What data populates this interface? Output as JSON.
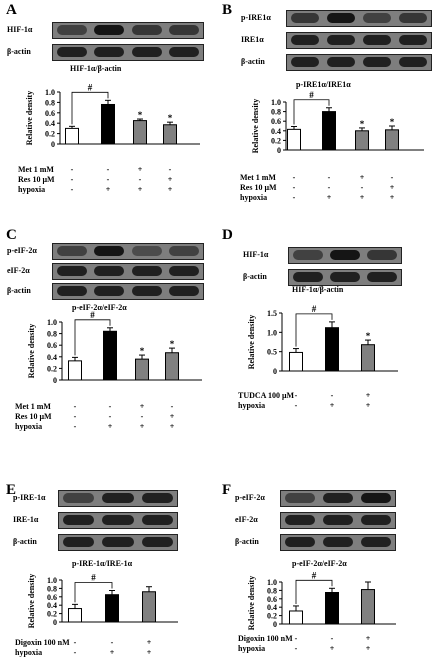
{
  "panels": [
    {
      "label": "A",
      "blots": [
        {
          "name": "HIF-1α",
          "intensities": [
            0.5,
            0.9,
            0.6,
            0.6
          ]
        },
        {
          "name": "β-actin",
          "intensities": [
            0.8,
            0.8,
            0.8,
            0.8
          ]
        }
      ],
      "ratio_title": "HIF-1α/β-actin",
      "conditions": [
        {
          "name": "Met 1 mM",
          "values": [
            "-",
            "-",
            "+",
            "-"
          ]
        },
        {
          "name": "Res 10 μM",
          "values": [
            "-",
            "-",
            "-",
            "+"
          ]
        },
        {
          "name": "hypoxia",
          "values": [
            "-",
            "+",
            "+",
            "+"
          ]
        }
      ],
      "chart_data": {
        "type": "bar",
        "ylabel": "Relative density",
        "ylim": [
          0,
          1.0
        ],
        "yticks": [
          "0",
          "0.2",
          "0.4",
          "0.6",
          "0.8",
          "1.0"
        ],
        "ytick_values": [
          0,
          0.2,
          0.4,
          0.6,
          0.8,
          1.0
        ],
        "values": [
          0.3,
          0.76,
          0.45,
          0.37
        ],
        "errors": [
          0.04,
          0.08,
          0.03,
          0.05
        ],
        "fills": [
          "#ffffff",
          "#000000",
          "#808080",
          "#808080"
        ],
        "annotations": [
          "",
          "",
          "*",
          "*"
        ],
        "bracket": {
          "from": 0,
          "to": 1,
          "label": "#"
        }
      }
    },
    {
      "label": "B",
      "blots": [
        {
          "name": "p-IRE1α",
          "intensities": [
            0.6,
            0.9,
            0.5,
            0.6
          ]
        },
        {
          "name": "IRE1α",
          "intensities": [
            0.8,
            0.8,
            0.8,
            0.8
          ]
        },
        {
          "name": "β-actin",
          "intensities": [
            0.8,
            0.8,
            0.8,
            0.8
          ]
        }
      ],
      "ratio_title": "p-IRE1α/IRE1α",
      "conditions": [
        {
          "name": "Met 1 mM",
          "values": [
            "-",
            "-",
            "+",
            "-"
          ]
        },
        {
          "name": "Res 10 μM",
          "values": [
            "-",
            "-",
            "-",
            "+"
          ]
        },
        {
          "name": "hypoxia",
          "values": [
            "-",
            "+",
            "+",
            "+"
          ]
        }
      ],
      "chart_data": {
        "type": "bar",
        "ylabel": "Relative density",
        "ylim": [
          0,
          1.0
        ],
        "yticks": [
          "0",
          "0.2",
          "0.4",
          "0.6",
          "0.8",
          "1.0"
        ],
        "ytick_values": [
          0,
          0.2,
          0.4,
          0.6,
          0.8,
          1.0
        ],
        "values": [
          0.43,
          0.8,
          0.4,
          0.42
        ],
        "errors": [
          0.06,
          0.08,
          0.06,
          0.08
        ],
        "fills": [
          "#ffffff",
          "#000000",
          "#808080",
          "#808080"
        ],
        "annotations": [
          "",
          "",
          "*",
          "*"
        ],
        "bracket": {
          "from": 0,
          "to": 1,
          "label": "#"
        }
      }
    },
    {
      "label": "C",
      "blots": [
        {
          "name": "p-eIF-2α",
          "intensities": [
            0.5,
            0.9,
            0.4,
            0.5
          ]
        },
        {
          "name": "eIF-2α",
          "intensities": [
            0.8,
            0.8,
            0.8,
            0.8
          ]
        },
        {
          "name": "β-actin",
          "intensities": [
            0.8,
            0.8,
            0.8,
            0.8
          ]
        }
      ],
      "ratio_title": "p-eIF-2α/eIF-2α",
      "conditions": [
        {
          "name": "Met 1 mM",
          "values": [
            "-",
            "-",
            "+",
            "-"
          ]
        },
        {
          "name": "Res 10 μM",
          "values": [
            "-",
            "-",
            "-",
            "+"
          ]
        },
        {
          "name": "hypoxia",
          "values": [
            "-",
            "+",
            "+",
            "+"
          ]
        }
      ],
      "chart_data": {
        "type": "bar",
        "ylabel": "Relative density",
        "ylim": [
          0,
          1.0
        ],
        "yticks": [
          "0",
          "0.2",
          "0.4",
          "0.6",
          "0.8",
          "1.0"
        ],
        "ytick_values": [
          0,
          0.2,
          0.4,
          0.6,
          0.8,
          1.0
        ],
        "values": [
          0.33,
          0.84,
          0.36,
          0.47
        ],
        "errors": [
          0.06,
          0.06,
          0.07,
          0.08
        ],
        "fills": [
          "#ffffff",
          "#000000",
          "#808080",
          "#808080"
        ],
        "annotations": [
          "",
          "",
          "*",
          "*"
        ],
        "bracket": {
          "from": 0,
          "to": 1,
          "label": "#"
        }
      }
    },
    {
      "label": "D",
      "blots": [
        {
          "name": "HIF-1α",
          "intensities": [
            0.5,
            0.9,
            0.6
          ]
        },
        {
          "name": "β-actin",
          "intensities": [
            0.8,
            0.8,
            0.8
          ]
        }
      ],
      "ratio_title": "HIF-1α/β-actin",
      "conditions": [
        {
          "name": "TUDCA 100 μM",
          "values": [
            "-",
            "-",
            "+"
          ]
        },
        {
          "name": "hypoxia",
          "values": [
            "-",
            "+",
            "+"
          ]
        }
      ],
      "chart_data": {
        "type": "bar",
        "ylabel": "Relative density",
        "ylim": [
          0,
          1.5
        ],
        "yticks": [
          "0",
          "0.5",
          "1.0",
          "1.5"
        ],
        "ytick_values": [
          0,
          0.5,
          1.0,
          1.5
        ],
        "values": [
          0.48,
          1.12,
          0.68
        ],
        "errors": [
          0.1,
          0.15,
          0.12
        ],
        "fills": [
          "#ffffff",
          "#000000",
          "#808080"
        ],
        "annotations": [
          "",
          "",
          "*"
        ],
        "bracket": {
          "from": 0,
          "to": 1,
          "label": "#"
        }
      }
    },
    {
      "label": "E",
      "blots": [
        {
          "name": "p-IRE-1α",
          "intensities": [
            0.5,
            0.8,
            0.8
          ]
        },
        {
          "name": "IRE-1α",
          "intensities": [
            0.8,
            0.8,
            0.8
          ]
        },
        {
          "name": "β-actin",
          "intensities": [
            0.8,
            0.8,
            0.8
          ]
        }
      ],
      "ratio_title": "p-IRE-1α/IRE-1α",
      "conditions": [
        {
          "name": "Digoxin 100 nM",
          "values": [
            "-",
            "-",
            "+"
          ]
        },
        {
          "name": "hypoxia",
          "values": [
            "-",
            "+",
            "+"
          ]
        }
      ],
      "chart_data": {
        "type": "bar",
        "ylabel": "Relative density",
        "ylim": [
          0,
          1.0
        ],
        "yticks": [
          "0",
          "0.2",
          "0.4",
          "0.6",
          "0.8",
          "1.0"
        ],
        "ytick_values": [
          0,
          0.2,
          0.4,
          0.6,
          0.8,
          1.0
        ],
        "values": [
          0.32,
          0.65,
          0.72
        ],
        "errors": [
          0.1,
          0.1,
          0.12
        ],
        "fills": [
          "#ffffff",
          "#000000",
          "#808080"
        ],
        "annotations": [
          "",
          "",
          ""
        ],
        "bracket": {
          "from": 0,
          "to": 1,
          "label": "#"
        }
      }
    },
    {
      "label": "F",
      "blots": [
        {
          "name": "p-eIF-2α",
          "intensities": [
            0.5,
            0.8,
            0.9
          ]
        },
        {
          "name": "eIF-2α",
          "intensities": [
            0.8,
            0.8,
            0.8
          ]
        },
        {
          "name": "β-actin",
          "intensities": [
            0.8,
            0.8,
            0.8
          ]
        }
      ],
      "ratio_title": "p-eIF-2α/eIF-2α",
      "conditions": [
        {
          "name": "Digoxin 100 nM",
          "values": [
            "-",
            "-",
            "+"
          ]
        },
        {
          "name": "hypoxia",
          "values": [
            "-",
            "+",
            "+"
          ]
        }
      ],
      "chart_data": {
        "type": "bar",
        "ylabel": "Relative density",
        "ylim": [
          0,
          1.0
        ],
        "yticks": [
          "0",
          "0.2",
          "0.4",
          "0.6",
          "0.8",
          "1.0"
        ],
        "ytick_values": [
          0,
          0.2,
          0.4,
          0.6,
          0.8,
          1.0
        ],
        "values": [
          0.31,
          0.75,
          0.82
        ],
        "errors": [
          0.12,
          0.1,
          0.18
        ],
        "fills": [
          "#ffffff",
          "#000000",
          "#808080"
        ],
        "annotations": [
          "",
          "",
          ""
        ],
        "bracket": {
          "from": 0,
          "to": 1,
          "label": "#"
        }
      }
    }
  ]
}
